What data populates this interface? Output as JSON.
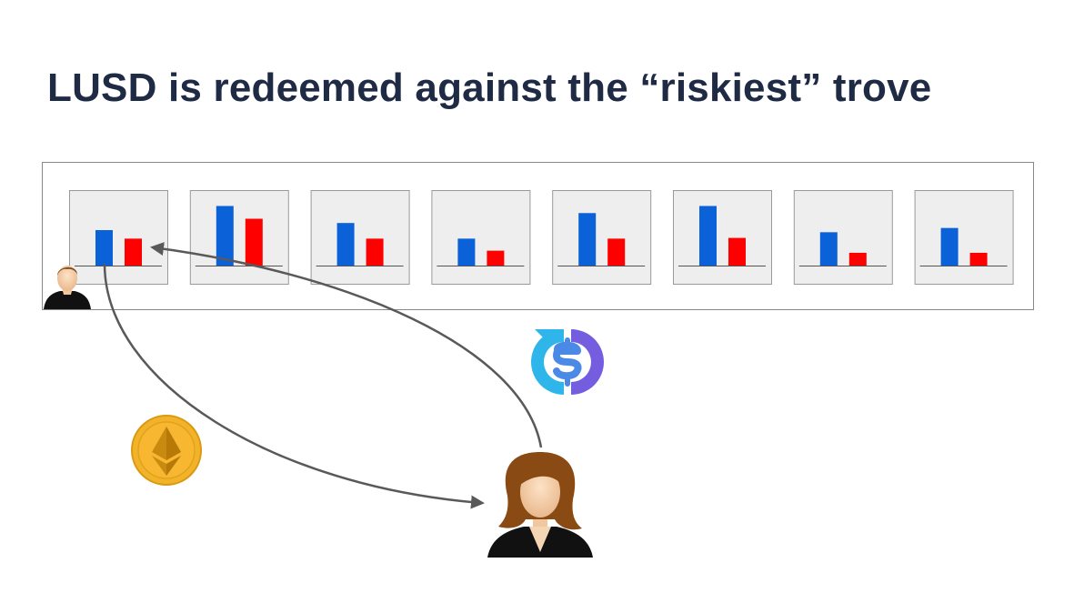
{
  "slide": {
    "title": "LUSD is redeemed against the “riskiest” trove"
  },
  "colors": {
    "collateral_bar": "#0b61d8",
    "debt_bar": "#ff0000",
    "trove_bg": "#eeeeee",
    "trove_border": "#999999",
    "panel_border": "#888888",
    "arrow": "#595959",
    "title": "#1f2a44",
    "eth_coin": "#f2b32a",
    "lusd_left": "#2eb6ea",
    "lusd_right": "#745ddf"
  },
  "troves": [
    {
      "collateral": 0.5,
      "debt": 0.38
    },
    {
      "collateral": 0.84,
      "debt": 0.66
    },
    {
      "collateral": 0.6,
      "debt": 0.38
    },
    {
      "collateral": 0.38,
      "debt": 0.21
    },
    {
      "collateral": 0.74,
      "debt": 0.38
    },
    {
      "collateral": 0.84,
      "debt": 0.39
    },
    {
      "collateral": 0.47,
      "debt": 0.18
    },
    {
      "collateral": 0.53,
      "debt": 0.18
    }
  ],
  "icons": {
    "trove_owner": "person-male-icon",
    "redeemer": "person-female-icon",
    "eth": "ether-coin-icon",
    "lusd": "lusd-logo-icon"
  }
}
